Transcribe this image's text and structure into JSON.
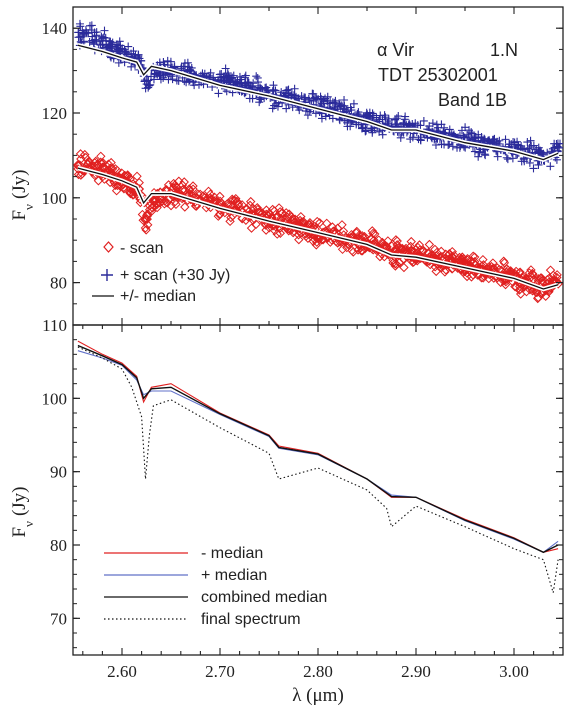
{
  "chart_data": [
    {
      "type": "scatter",
      "panel": "top",
      "ylabel": "F_ν (Jy)",
      "ylabel_main": "F",
      "ylabel_sub": "ν",
      "ylabel_unit": "(Jy)",
      "xlim": [
        2.55,
        3.05
      ],
      "ylim": [
        70,
        145
      ],
      "yticks": [
        80,
        100,
        120,
        140
      ],
      "annotations": [
        "α Vir",
        "1.N",
        "TDT 25302001",
        "Band 1B"
      ],
      "legend_position": "lower-left",
      "legend": [
        {
          "marker": "diamond",
          "label": "- scan",
          "color": "#e02020"
        },
        {
          "marker": "plus",
          "label": "+ scan (+30 Jy)",
          "color": "#2a2a9a"
        },
        {
          "marker": "line",
          "label": "+/- median",
          "color": "#111111"
        }
      ],
      "series": [
        {
          "name": "- scan",
          "marker": "diamond",
          "color": "#e02020",
          "points": [
            [
              2.555,
              108
            ],
            [
              2.58,
              106.5
            ],
            [
              2.6,
              104.5
            ],
            [
              2.615,
              103
            ],
            [
              2.62,
              100
            ],
            [
              2.624,
              93
            ],
            [
              2.63,
              99
            ],
            [
              2.65,
              101.5
            ],
            [
              2.7,
              98
            ],
            [
              2.75,
              95
            ],
            [
              2.8,
              92
            ],
            [
              2.85,
              89
            ],
            [
              2.88,
              87
            ],
            [
              2.9,
              86.5
            ],
            [
              2.95,
              84
            ],
            [
              3.0,
              81
            ],
            [
              3.03,
              79
            ],
            [
              3.045,
              81
            ]
          ]
        },
        {
          "name": "+ scan (+30 Jy)",
          "marker": "plus",
          "color": "#2a2a9a",
          "points": [
            [
              2.555,
              139
            ],
            [
              2.58,
              136.5
            ],
            [
              2.6,
              134
            ],
            [
              2.615,
              133
            ],
            [
              2.62,
              131
            ],
            [
              2.625,
              126
            ],
            [
              2.63,
              130
            ],
            [
              2.65,
              130
            ],
            [
              2.7,
              127.5
            ],
            [
              2.75,
              124.5
            ],
            [
              2.8,
              121.5
            ],
            [
              2.85,
              118.5
            ],
            [
              2.9,
              116
            ],
            [
              2.95,
              113.5
            ],
            [
              3.0,
              111.5
            ],
            [
              3.03,
              110
            ],
            [
              3.045,
              112
            ]
          ]
        },
        {
          "name": "+/- median",
          "role": "median",
          "color": "#111111",
          "curves": [
            [
              [
                2.555,
                107
              ],
              [
                2.58,
                105.5
              ],
              [
                2.6,
                104
              ],
              [
                2.615,
                102.5
              ],
              [
                2.622,
                98.8
              ],
              [
                2.63,
                101
              ],
              [
                2.65,
                101
              ],
              [
                2.7,
                97.5
              ],
              [
                2.75,
                94.5
              ],
              [
                2.8,
                91.8
              ],
              [
                2.85,
                89
              ],
              [
                2.875,
                86.5
              ],
              [
                2.9,
                86
              ],
              [
                2.95,
                83.5
              ],
              [
                3.0,
                81
              ],
              [
                3.03,
                78.5
              ],
              [
                3.045,
                79.5
              ]
            ],
            [
              [
                2.555,
                136
              ],
              [
                2.58,
                134.5
              ],
              [
                2.6,
                133
              ],
              [
                2.615,
                132
              ],
              [
                2.622,
                129
              ],
              [
                2.63,
                131
              ],
              [
                2.65,
                130
              ],
              [
                2.7,
                126.5
              ],
              [
                2.75,
                124
              ],
              [
                2.8,
                121
              ],
              [
                2.85,
                118
              ],
              [
                2.875,
                116
              ],
              [
                2.9,
                116
              ],
              [
                2.95,
                113
              ],
              [
                3.0,
                111
              ],
              [
                3.03,
                109
              ],
              [
                3.045,
                110.5
              ]
            ]
          ]
        }
      ]
    },
    {
      "type": "line",
      "panel": "bottom",
      "xlabel": "λ (μm)",
      "ylabel": "F_ν (Jy)",
      "ylabel_main": "F",
      "ylabel_sub": "ν",
      "ylabel_unit": "(Jy)",
      "xlim": [
        2.55,
        3.05
      ],
      "ylim": [
        65,
        110
      ],
      "xticks": [
        2.6,
        2.7,
        2.8,
        2.9,
        3.0
      ],
      "xtick_labels": [
        "2.60",
        "2.70",
        "2.80",
        "2.90",
        "3.00"
      ],
      "yticks": [
        70,
        80,
        90,
        100,
        110
      ],
      "legend_position": "lower-left",
      "series": [
        {
          "name": "- median",
          "color": "#e02020",
          "style": "solid",
          "x": [
            2.555,
            2.58,
            2.6,
            2.615,
            2.622,
            2.63,
            2.65,
            2.7,
            2.75,
            2.76,
            2.8,
            2.85,
            2.875,
            2.9,
            2.95,
            3.0,
            3.03,
            3.045
          ],
          "y": [
            107.8,
            106,
            104.8,
            103,
            99.5,
            101.5,
            102,
            98,
            95,
            93.5,
            92.5,
            89,
            86.5,
            86.5,
            83.5,
            81,
            79,
            79.5
          ]
        },
        {
          "name": "+ median",
          "color": "#6070c8",
          "style": "solid",
          "x": [
            2.555,
            2.58,
            2.6,
            2.615,
            2.622,
            2.63,
            2.65,
            2.7,
            2.75,
            2.76,
            2.8,
            2.85,
            2.875,
            2.9,
            2.95,
            3.0,
            3.03,
            3.045
          ],
          "y": [
            106.5,
            105.5,
            104.5,
            102.5,
            100.5,
            101,
            101,
            97.8,
            94.8,
            93.2,
            92.3,
            89,
            86.8,
            86.5,
            83.3,
            80.8,
            79,
            80.5
          ]
        },
        {
          "name": "combined median",
          "color": "#111111",
          "style": "solid",
          "x": [
            2.555,
            2.58,
            2.6,
            2.615,
            2.622,
            2.63,
            2.65,
            2.7,
            2.75,
            2.76,
            2.8,
            2.85,
            2.875,
            2.9,
            2.95,
            3.0,
            3.03,
            3.045
          ],
          "y": [
            107.2,
            105.8,
            104.6,
            102.8,
            100,
            101.3,
            101.5,
            97.9,
            94.9,
            93.3,
            92.4,
            89,
            86.6,
            86.5,
            83.4,
            80.9,
            79,
            80
          ]
        },
        {
          "name": "final spectrum",
          "color": "#111111",
          "style": "dotted",
          "x": [
            2.555,
            2.58,
            2.6,
            2.61,
            2.62,
            2.624,
            2.628,
            2.632,
            2.65,
            2.7,
            2.75,
            2.76,
            2.8,
            2.85,
            2.87,
            2.875,
            2.9,
            2.95,
            3.0,
            3.03,
            3.04,
            3.045
          ],
          "y": [
            107,
            105.5,
            104,
            101.5,
            97.5,
            89,
            95,
            99,
            99.8,
            96,
            92.5,
            89,
            90.5,
            87.5,
            85,
            82.5,
            85.3,
            82.5,
            79.5,
            78,
            73.5,
            78
          ]
        }
      ]
    }
  ]
}
